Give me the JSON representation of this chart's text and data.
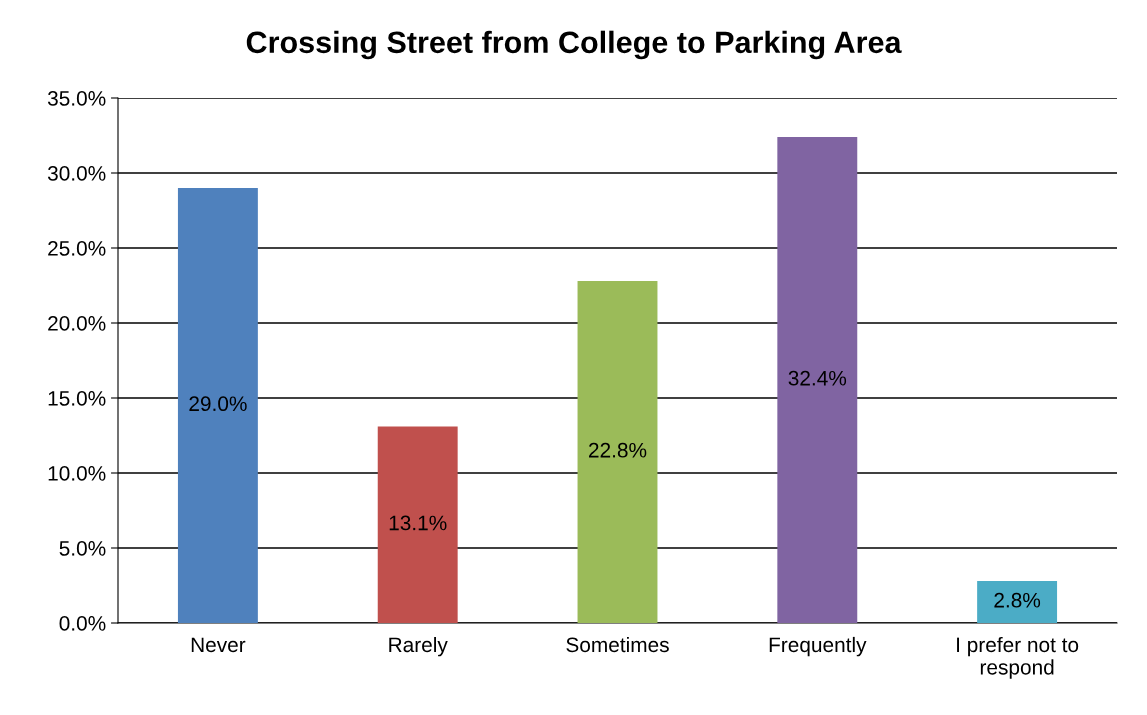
{
  "chart_data": {
    "type": "bar",
    "title": "Crossing Street from College to Parking Area",
    "categories": [
      "Never",
      "Rarely",
      "Sometimes",
      "Frequently",
      "I prefer not to respond"
    ],
    "values": [
      29.0,
      13.1,
      22.8,
      32.4,
      2.8
    ],
    "colors": [
      "#4f81bd",
      "#c0504d",
      "#9bbb59",
      "#8064a2",
      "#4bacc6"
    ],
    "value_labels": [
      "29.0%",
      "13.1%",
      "22.8%",
      "32.4%",
      "2.8%"
    ],
    "ylim": [
      0,
      35
    ],
    "yticks": [
      {
        "value": 0,
        "label": "0.0%"
      },
      {
        "value": 5,
        "label": "5.0%"
      },
      {
        "value": 10,
        "label": "10.0%"
      },
      {
        "value": 15,
        "label": "15.0%"
      },
      {
        "value": 20,
        "label": "20.0%"
      },
      {
        "value": 25,
        "label": "25.0%"
      },
      {
        "value": 30,
        "label": "30.0%"
      },
      {
        "value": 35,
        "label": "35.0%"
      }
    ],
    "grid": "y",
    "legend": false
  }
}
